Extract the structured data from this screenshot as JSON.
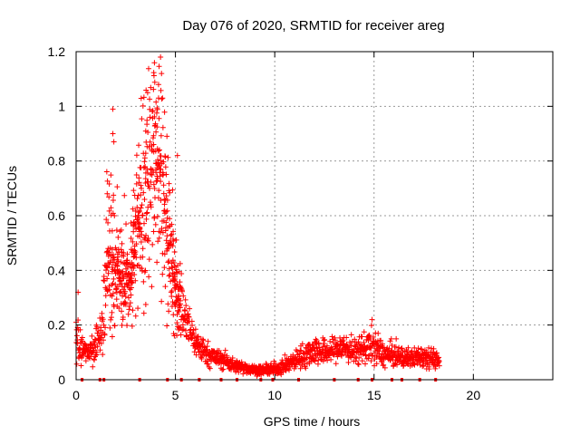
{
  "chart_data": {
    "type": "scatter",
    "title": "Day 076 of 2020, SRMTID for receiver areg",
    "xlabel": "GPS time / hours",
    "ylabel": "SRMTID / TECUs",
    "xlim": [
      0,
      24
    ],
    "ylim": [
      0,
      1.2
    ],
    "x_ticks": [
      0,
      5,
      10,
      15,
      20
    ],
    "x_tick_labels": [
      "0",
      "5",
      "10",
      "15",
      "20"
    ],
    "y_ticks": [
      0,
      0.2,
      0.4,
      0.6,
      0.8,
      1.0,
      1.2
    ],
    "y_tick_labels": [
      "0",
      "0.2",
      "0.4",
      "0.6",
      "0.8",
      "1",
      "1.2"
    ],
    "grid": true,
    "marker": "plus",
    "colors": {
      "series": "#ff0000",
      "grid": "#999999",
      "axis": "#000000"
    },
    "envelope": {
      "comment": "approximate median SRMTID level vs time (hours), used to generate the dense point cloud",
      "x": [
        0.0,
        0.3,
        0.6,
        1.0,
        1.3,
        1.6,
        2.0,
        2.3,
        2.7,
        3.0,
        3.3,
        3.6,
        3.9,
        4.2,
        4.5,
        4.8,
        5.1,
        5.5,
        6.0,
        6.5,
        7.0,
        7.5,
        8.0,
        8.5,
        9.0,
        9.5,
        10.0,
        10.5,
        11.0,
        11.5,
        12.0,
        12.5,
        13.0,
        13.5,
        14.0,
        14.5,
        15.0,
        15.5,
        16.0,
        16.5,
        17.0,
        17.5,
        18.0,
        18.3
      ],
      "y": [
        0.15,
        0.11,
        0.1,
        0.13,
        0.2,
        0.42,
        0.35,
        0.33,
        0.3,
        0.45,
        0.55,
        0.68,
        0.7,
        0.66,
        0.55,
        0.38,
        0.28,
        0.22,
        0.14,
        0.1,
        0.08,
        0.07,
        0.05,
        0.045,
        0.035,
        0.035,
        0.04,
        0.05,
        0.07,
        0.09,
        0.11,
        0.1,
        0.11,
        0.12,
        0.1,
        0.12,
        0.12,
        0.09,
        0.09,
        0.08,
        0.08,
        0.09,
        0.08,
        0.06
      ],
      "spread": [
        0.08,
        0.05,
        0.04,
        0.06,
        0.1,
        0.22,
        0.16,
        0.15,
        0.14,
        0.22,
        0.28,
        0.32,
        0.34,
        0.33,
        0.25,
        0.16,
        0.11,
        0.08,
        0.05,
        0.04,
        0.03,
        0.03,
        0.02,
        0.02,
        0.015,
        0.015,
        0.02,
        0.025,
        0.03,
        0.04,
        0.05,
        0.04,
        0.04,
        0.05,
        0.04,
        0.05,
        0.06,
        0.04,
        0.04,
        0.03,
        0.03,
        0.04,
        0.03,
        0.02
      ]
    },
    "extremes": [
      {
        "x": 4.25,
        "y": 1.18
      },
      {
        "x": 4.3,
        "y": 1.12
      },
      {
        "x": 4.15,
        "y": 1.08
      },
      {
        "x": 4.35,
        "y": 1.03
      },
      {
        "x": 3.6,
        "y": 1.05
      },
      {
        "x": 1.85,
        "y": 0.99
      },
      {
        "x": 1.9,
        "y": 0.87
      },
      {
        "x": 1.85,
        "y": 0.9
      },
      {
        "x": 5.1,
        "y": 0.82
      },
      {
        "x": 14.9,
        "y": 0.22
      },
      {
        "x": 0.1,
        "y": 0.32
      }
    ],
    "baseline_points": [
      0.3,
      1.2,
      1.4,
      3.2,
      4.6,
      5.3,
      6.2,
      7.3,
      8.1,
      9.3,
      9.9,
      11.2,
      13.0,
      14.2,
      14.9,
      15.9,
      16.4,
      17.3,
      18.1
    ]
  }
}
